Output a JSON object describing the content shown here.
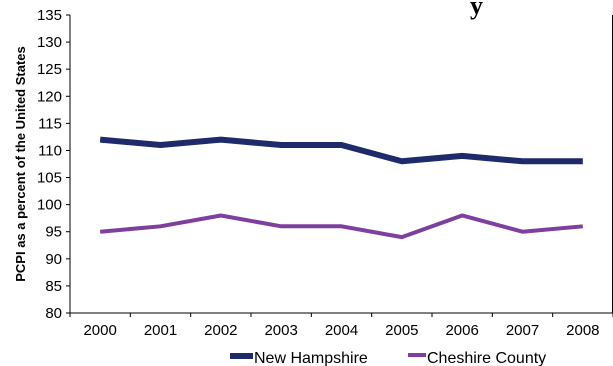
{
  "chart_data": {
    "type": "line",
    "title_fragment": "y",
    "xlabel": "",
    "ylabel": "PCPI as a percent of the United States",
    "categories": [
      "2000",
      "2001",
      "2002",
      "2003",
      "2004",
      "2005",
      "2006",
      "2007",
      "2008"
    ],
    "ylim": [
      80,
      135
    ],
    "yticks": [
      80,
      85,
      90,
      95,
      100,
      105,
      110,
      115,
      120,
      125,
      130,
      135
    ],
    "grid": false,
    "legend_position": "bottom",
    "series": [
      {
        "name": "New Hampshire",
        "color": "#1f2a6b",
        "values": [
          112,
          111,
          112,
          111,
          111,
          108,
          109,
          108,
          108
        ]
      },
      {
        "name": "Cheshire County",
        "color": "#7f3f9f",
        "values": [
          95,
          96,
          98,
          96,
          96,
          94,
          98,
          95,
          96
        ]
      }
    ]
  }
}
